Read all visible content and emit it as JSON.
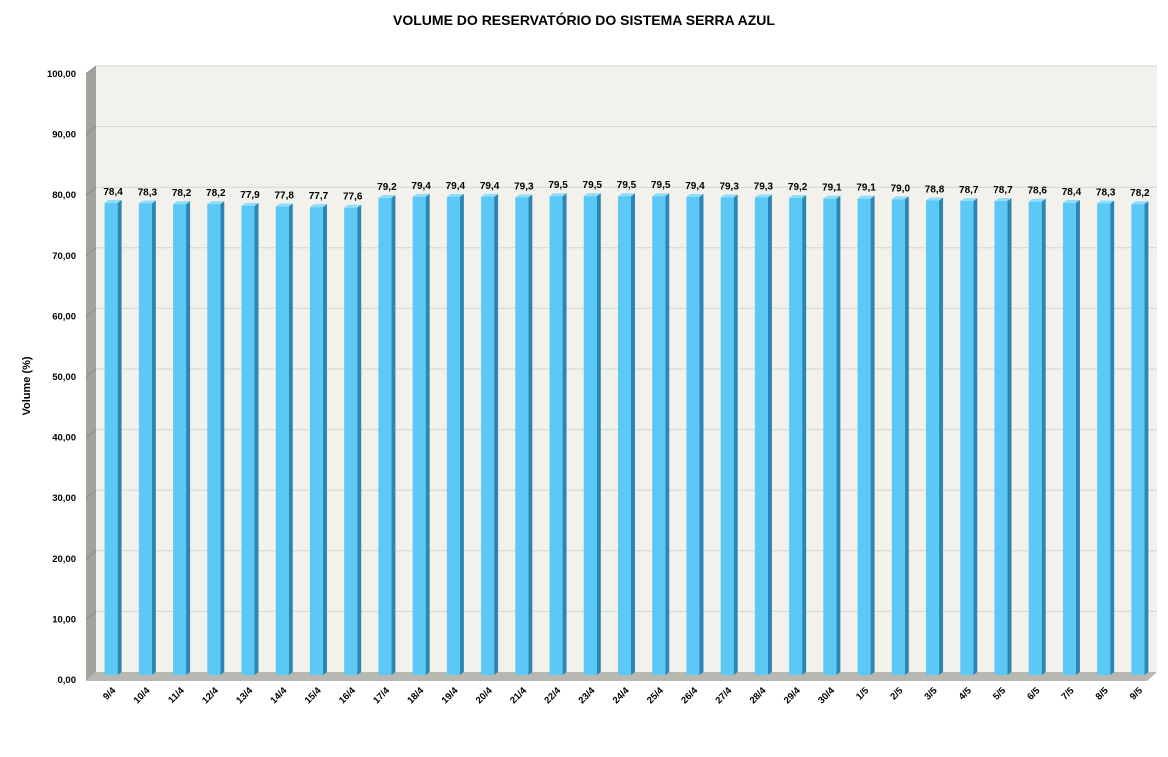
{
  "chart_data": {
    "type": "bar",
    "title": "VOLUME DO RESERVATÓRIO DO SISTEMA SERRA AZUL",
    "xlabel": "",
    "ylabel": "Volume (%)",
    "ylim": [
      0,
      100
    ],
    "yticks": [
      "0,00",
      "10,00",
      "20,00",
      "30,00",
      "40,00",
      "50,00",
      "60,00",
      "70,00",
      "80,00",
      "90,00",
      "100,00"
    ],
    "grid": true,
    "legend": "none",
    "categories": [
      "9/4",
      "10/4",
      "11/4",
      "12/4",
      "13/4",
      "14/4",
      "15/4",
      "16/4",
      "17/4",
      "18/4",
      "19/4",
      "20/4",
      "21/4",
      "22/4",
      "23/4",
      "24/4",
      "25/4",
      "26/4",
      "27/4",
      "28/4",
      "29/4",
      "30/4",
      "1/5",
      "2/5",
      "3/5",
      "4/5",
      "5/5",
      "6/5",
      "7/5",
      "8/5",
      "9/5"
    ],
    "values": [
      78.4,
      78.3,
      78.2,
      78.2,
      77.9,
      77.8,
      77.7,
      77.6,
      79.2,
      79.4,
      79.4,
      79.4,
      79.3,
      79.5,
      79.5,
      79.5,
      79.5,
      79.4,
      79.3,
      79.3,
      79.2,
      79.1,
      79.1,
      79.0,
      78.8,
      78.7,
      78.7,
      78.6,
      78.4,
      78.3,
      78.2
    ],
    "data_labels": [
      "78,4",
      "78,3",
      "78,2",
      "78,2",
      "77,9",
      "77,8",
      "77,7",
      "77,6",
      "79,2",
      "79,4",
      "79,4",
      "79,4",
      "79,3",
      "79,5",
      "79,5",
      "79,5",
      "79,5",
      "79,4",
      "79,3",
      "79,3",
      "79,2",
      "79,1",
      "79,1",
      "79,0",
      "78,8",
      "78,7",
      "78,7",
      "78,6",
      "78,4",
      "78,3",
      "78,2"
    ],
    "colors": {
      "bar_front": "#5cc8f5",
      "bar_side": "#2b86b3",
      "bar_top": "#8fdcfb",
      "plot_back": "#f2f1ec",
      "gridline": "#d7d6d0",
      "left_wall": "#a3a39d",
      "floor": "#b8b8b2"
    }
  }
}
